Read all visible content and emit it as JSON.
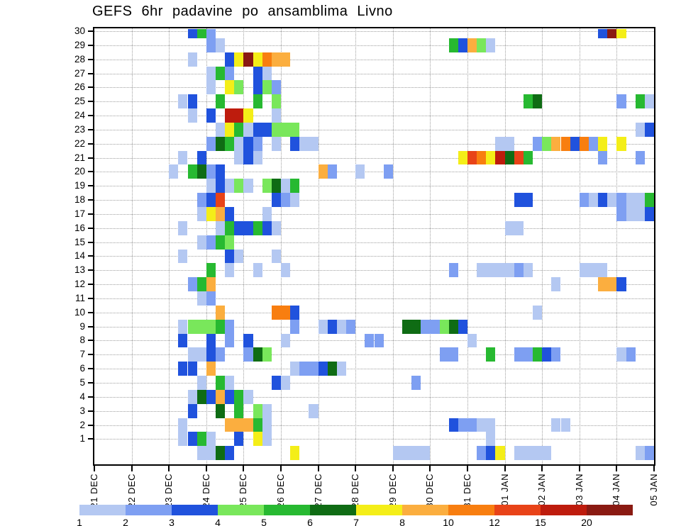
{
  "title": "GEFS 6hr padavine po ansamblima Livno",
  "chart_data": {
    "type": "heatmap",
    "description_visible": "6-hourly GEFS ensemble precipitation, members 1-30 on y-axis, time on x-axis",
    "time_step_hours": 6,
    "n_time_steps": 60,
    "x_tick_labels": [
      "21 DEC",
      "22 DEC",
      "23 DEC",
      "24 DEC",
      "25 DEC",
      "26 DEC",
      "27 DEC",
      "28 DEC",
      "29 DEC",
      "30 DEC",
      "31 DEC",
      "01 JAN",
      "02 JAN",
      "03 JAN",
      "04 JAN",
      "05 JAN"
    ],
    "y_labels": [
      "30",
      "29",
      "28",
      "27",
      "26",
      "25",
      "24",
      "23",
      "22",
      "21",
      "20",
      "19",
      "18",
      "17",
      "16",
      "15",
      "14",
      "13",
      "12",
      "11",
      "10",
      "9",
      "8",
      "7",
      "6",
      "5",
      "4",
      "3",
      "2",
      "1"
    ],
    "legend": {
      "labels": [
        "1",
        "2",
        "3",
        "4",
        "5",
        "6",
        "7",
        "8",
        "10",
        "12",
        "15",
        "20"
      ],
      "colors": [
        "#b4c8f2",
        "#7e9ff2",
        "#2052dd",
        "#79e75b",
        "#27b931",
        "#0f6c14",
        "#f4ee18",
        "#fbae3f",
        "#f87e10",
        "#e84318",
        "#be1c0d",
        "#8a1a12"
      ]
    },
    "cells": [
      [
        30,
        10,
        2
      ],
      [
        30,
        11,
        4
      ],
      [
        30,
        12,
        1
      ],
      [
        30,
        54,
        2
      ],
      [
        30,
        55,
        11
      ],
      [
        30,
        56,
        6
      ],
      [
        29,
        12,
        1
      ],
      [
        29,
        13,
        0
      ],
      [
        29,
        38,
        4
      ],
      [
        29,
        39,
        2
      ],
      [
        29,
        40,
        7
      ],
      [
        29,
        41,
        3
      ],
      [
        29,
        42,
        0
      ],
      [
        28,
        10,
        0
      ],
      [
        28,
        14,
        2
      ],
      [
        28,
        15,
        6
      ],
      [
        28,
        16,
        11
      ],
      [
        28,
        17,
        6
      ],
      [
        28,
        18,
        8
      ],
      [
        28,
        19,
        7
      ],
      [
        28,
        20,
        7
      ],
      [
        27,
        12,
        0
      ],
      [
        27,
        13,
        4
      ],
      [
        27,
        14,
        1
      ],
      [
        27,
        17,
        2
      ],
      [
        27,
        18,
        0
      ],
      [
        26,
        12,
        0
      ],
      [
        26,
        14,
        6
      ],
      [
        26,
        15,
        3
      ],
      [
        26,
        17,
        2
      ],
      [
        26,
        18,
        3
      ],
      [
        26,
        19,
        1
      ],
      [
        25,
        9,
        0
      ],
      [
        25,
        10,
        2
      ],
      [
        25,
        13,
        4
      ],
      [
        25,
        17,
        4
      ],
      [
        25,
        19,
        3
      ],
      [
        25,
        46,
        4
      ],
      [
        25,
        47,
        5
      ],
      [
        25,
        56,
        1
      ],
      [
        25,
        58,
        4
      ],
      [
        25,
        59,
        0
      ],
      [
        24,
        10,
        0
      ],
      [
        24,
        12,
        2
      ],
      [
        24,
        14,
        10
      ],
      [
        24,
        15,
        10
      ],
      [
        24,
        16,
        6
      ],
      [
        24,
        19,
        0
      ],
      [
        23,
        13,
        0
      ],
      [
        23,
        14,
        6
      ],
      [
        23,
        15,
        4
      ],
      [
        23,
        16,
        0
      ],
      [
        23,
        17,
        2
      ],
      [
        23,
        18,
        2
      ],
      [
        23,
        19,
        3
      ],
      [
        23,
        20,
        3
      ],
      [
        23,
        21,
        3
      ],
      [
        23,
        58,
        0
      ],
      [
        23,
        59,
        2
      ],
      [
        22,
        12,
        1
      ],
      [
        22,
        13,
        5
      ],
      [
        22,
        14,
        4
      ],
      [
        22,
        15,
        0
      ],
      [
        22,
        16,
        2
      ],
      [
        22,
        17,
        1
      ],
      [
        22,
        19,
        0
      ],
      [
        22,
        21,
        2
      ],
      [
        22,
        22,
        0
      ],
      [
        22,
        23,
        0
      ],
      [
        22,
        43,
        0
      ],
      [
        22,
        44,
        0
      ],
      [
        22,
        47,
        1
      ],
      [
        22,
        48,
        3
      ],
      [
        22,
        49,
        7
      ],
      [
        22,
        50,
        8
      ],
      [
        22,
        51,
        2
      ],
      [
        22,
        52,
        8
      ],
      [
        22,
        53,
        1
      ],
      [
        22,
        54,
        6
      ],
      [
        22,
        56,
        6
      ],
      [
        21,
        9,
        0
      ],
      [
        21,
        11,
        2
      ],
      [
        21,
        15,
        0
      ],
      [
        21,
        16,
        2
      ],
      [
        21,
        17,
        0
      ],
      [
        21,
        39,
        6
      ],
      [
        21,
        40,
        9
      ],
      [
        21,
        41,
        8
      ],
      [
        21,
        42,
        6
      ],
      [
        21,
        43,
        10
      ],
      [
        21,
        44,
        5
      ],
      [
        21,
        45,
        9
      ],
      [
        21,
        46,
        4
      ],
      [
        21,
        54,
        1
      ],
      [
        21,
        58,
        1
      ],
      [
        20,
        8,
        0
      ],
      [
        20,
        10,
        4
      ],
      [
        20,
        11,
        5
      ],
      [
        20,
        12,
        1
      ],
      [
        20,
        13,
        2
      ],
      [
        20,
        24,
        7
      ],
      [
        20,
        25,
        1
      ],
      [
        20,
        28,
        0
      ],
      [
        20,
        31,
        1
      ],
      [
        19,
        12,
        0
      ],
      [
        19,
        13,
        2
      ],
      [
        19,
        14,
        0
      ],
      [
        19,
        15,
        3
      ],
      [
        19,
        16,
        0
      ],
      [
        19,
        18,
        3
      ],
      [
        19,
        19,
        5
      ],
      [
        19,
        20,
        0
      ],
      [
        19,
        21,
        4
      ],
      [
        18,
        11,
        1
      ],
      [
        18,
        12,
        2
      ],
      [
        18,
        13,
        9
      ],
      [
        18,
        19,
        2
      ],
      [
        18,
        20,
        1
      ],
      [
        18,
        21,
        0
      ],
      [
        18,
        45,
        2
      ],
      [
        18,
        46,
        2
      ],
      [
        18,
        52,
        1
      ],
      [
        18,
        53,
        0
      ],
      [
        18,
        54,
        2
      ],
      [
        18,
        55,
        0
      ],
      [
        18,
        56,
        1
      ],
      [
        18,
        57,
        0
      ],
      [
        18,
        58,
        0
      ],
      [
        18,
        59,
        4
      ],
      [
        17,
        11,
        0
      ],
      [
        17,
        12,
        6
      ],
      [
        17,
        13,
        7
      ],
      [
        17,
        14,
        2
      ],
      [
        17,
        18,
        0
      ],
      [
        17,
        56,
        1
      ],
      [
        17,
        57,
        0
      ],
      [
        17,
        58,
        0
      ],
      [
        17,
        59,
        2
      ],
      [
        16,
        9,
        0
      ],
      [
        16,
        13,
        0
      ],
      [
        16,
        14,
        4
      ],
      [
        16,
        15,
        2
      ],
      [
        16,
        16,
        2
      ],
      [
        16,
        17,
        4
      ],
      [
        16,
        18,
        2
      ],
      [
        16,
        19,
        0
      ],
      [
        16,
        44,
        0
      ],
      [
        16,
        45,
        0
      ],
      [
        15,
        11,
        0
      ],
      [
        15,
        12,
        1
      ],
      [
        15,
        13,
        4
      ],
      [
        15,
        14,
        3
      ],
      [
        14,
        9,
        0
      ],
      [
        14,
        14,
        2
      ],
      [
        14,
        15,
        0
      ],
      [
        14,
        19,
        0
      ],
      [
        13,
        12,
        4
      ],
      [
        13,
        14,
        0
      ],
      [
        13,
        17,
        0
      ],
      [
        13,
        20,
        0
      ],
      [
        13,
        38,
        1
      ],
      [
        13,
        41,
        0
      ],
      [
        13,
        42,
        0
      ],
      [
        13,
        43,
        0
      ],
      [
        13,
        44,
        0
      ],
      [
        13,
        45,
        1
      ],
      [
        13,
        46,
        0
      ],
      [
        13,
        52,
        0
      ],
      [
        13,
        53,
        0
      ],
      [
        13,
        54,
        0
      ],
      [
        12,
        10,
        1
      ],
      [
        12,
        11,
        4
      ],
      [
        12,
        12,
        7
      ],
      [
        12,
        49,
        0
      ],
      [
        12,
        54,
        7
      ],
      [
        12,
        55,
        7
      ],
      [
        12,
        56,
        2
      ],
      [
        11,
        11,
        0
      ],
      [
        11,
        12,
        1
      ],
      [
        10,
        13,
        7
      ],
      [
        10,
        19,
        8
      ],
      [
        10,
        20,
        8
      ],
      [
        10,
        21,
        2
      ],
      [
        10,
        47,
        0
      ],
      [
        9,
        9,
        0
      ],
      [
        9,
        10,
        3
      ],
      [
        9,
        11,
        3
      ],
      [
        9,
        12,
        3
      ],
      [
        9,
        13,
        4
      ],
      [
        9,
        14,
        1
      ],
      [
        9,
        21,
        1
      ],
      [
        9,
        24,
        0
      ],
      [
        9,
        25,
        2
      ],
      [
        9,
        26,
        0
      ],
      [
        9,
        27,
        1
      ],
      [
        9,
        33,
        5
      ],
      [
        9,
        34,
        5
      ],
      [
        9,
        35,
        1
      ],
      [
        9,
        36,
        1
      ],
      [
        9,
        37,
        3
      ],
      [
        9,
        38,
        5
      ],
      [
        9,
        39,
        2
      ],
      [
        8,
        9,
        2
      ],
      [
        8,
        12,
        2
      ],
      [
        8,
        14,
        1
      ],
      [
        8,
        16,
        2
      ],
      [
        8,
        20,
        0
      ],
      [
        8,
        29,
        1
      ],
      [
        8,
        30,
        1
      ],
      [
        8,
        40,
        0
      ],
      [
        7,
        10,
        0
      ],
      [
        7,
        11,
        0
      ],
      [
        7,
        12,
        2
      ],
      [
        7,
        13,
        1
      ],
      [
        7,
        16,
        1
      ],
      [
        7,
        17,
        5
      ],
      [
        7,
        18,
        3
      ],
      [
        7,
        37,
        1
      ],
      [
        7,
        38,
        1
      ],
      [
        7,
        42,
        4
      ],
      [
        7,
        45,
        1
      ],
      [
        7,
        46,
        1
      ],
      [
        7,
        47,
        4
      ],
      [
        7,
        48,
        2
      ],
      [
        7,
        49,
        1
      ],
      [
        7,
        56,
        0
      ],
      [
        7,
        57,
        1
      ],
      [
        6,
        9,
        2
      ],
      [
        6,
        10,
        2
      ],
      [
        6,
        12,
        7
      ],
      [
        6,
        21,
        0
      ],
      [
        6,
        22,
        1
      ],
      [
        6,
        23,
        1
      ],
      [
        6,
        24,
        2
      ],
      [
        6,
        25,
        5
      ],
      [
        6,
        26,
        0
      ],
      [
        5,
        11,
        0
      ],
      [
        5,
        13,
        4
      ],
      [
        5,
        14,
        0
      ],
      [
        5,
        19,
        2
      ],
      [
        5,
        20,
        0
      ],
      [
        5,
        34,
        1
      ],
      [
        4,
        10,
        0
      ],
      [
        4,
        11,
        5
      ],
      [
        4,
        12,
        2
      ],
      [
        4,
        13,
        7
      ],
      [
        4,
        14,
        2
      ],
      [
        4,
        15,
        4
      ],
      [
        4,
        16,
        0
      ],
      [
        3,
        10,
        2
      ],
      [
        3,
        13,
        5
      ],
      [
        3,
        15,
        4
      ],
      [
        3,
        17,
        3
      ],
      [
        3,
        18,
        0
      ],
      [
        3,
        23,
        0
      ],
      [
        2,
        9,
        0
      ],
      [
        2,
        14,
        7
      ],
      [
        2,
        15,
        7
      ],
      [
        2,
        16,
        7
      ],
      [
        2,
        17,
        4
      ],
      [
        2,
        18,
        0
      ],
      [
        2,
        38,
        2
      ],
      [
        2,
        39,
        1
      ],
      [
        2,
        40,
        1
      ],
      [
        2,
        41,
        0
      ],
      [
        2,
        42,
        0
      ],
      [
        2,
        49,
        0
      ],
      [
        2,
        50,
        0
      ],
      [
        1,
        9,
        0
      ],
      [
        1,
        10,
        2
      ],
      [
        1,
        11,
        4
      ],
      [
        1,
        12,
        0
      ],
      [
        1,
        15,
        2
      ],
      [
        1,
        17,
        6
      ],
      [
        1,
        18,
        0
      ],
      [
        1,
        42,
        0
      ],
      [
        0,
        11,
        0
      ],
      [
        0,
        12,
        0
      ],
      [
        0,
        13,
        5
      ],
      [
        0,
        14,
        2
      ],
      [
        0,
        21,
        6
      ],
      [
        0,
        32,
        0
      ],
      [
        0,
        33,
        0
      ],
      [
        0,
        34,
        0
      ],
      [
        0,
        35,
        0
      ],
      [
        0,
        41,
        1
      ],
      [
        0,
        42,
        2
      ],
      [
        0,
        43,
        6
      ],
      [
        0,
        45,
        0
      ],
      [
        0,
        46,
        0
      ],
      [
        0,
        47,
        0
      ],
      [
        0,
        48,
        0
      ],
      [
        0,
        58,
        0
      ],
      [
        0,
        59,
        1
      ]
    ]
  }
}
